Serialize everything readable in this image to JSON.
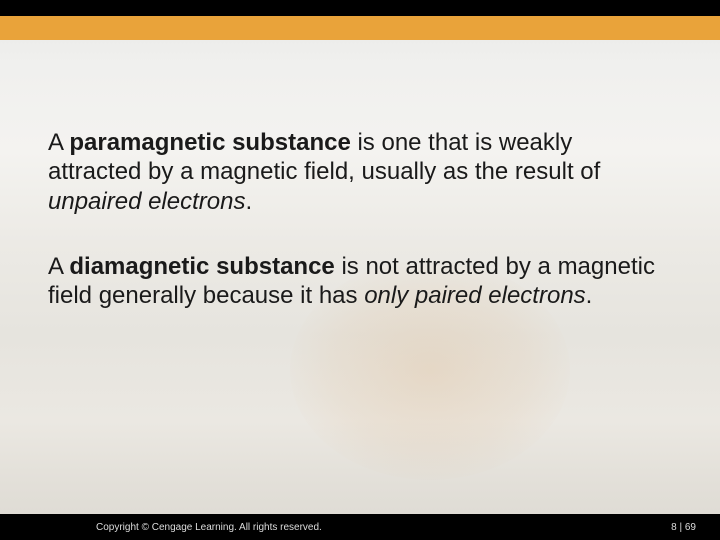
{
  "colors": {
    "top_black": "#000000",
    "top_orange": "#e9a33a",
    "text": "#1a1a1a",
    "footer_bg": "#000000",
    "footer_text": "#dddddd",
    "background_gradient": [
      "#e8e8e6",
      "#f0f0ee",
      "#f4f3f0",
      "#eceae5",
      "#e6e4de",
      "#ebe8e2",
      "#e2dfd8",
      "#dcd9d2"
    ]
  },
  "typography": {
    "body_font": "Arial",
    "body_size_pt": 18,
    "footer_size_pt": 7.5,
    "line_height": 1.22
  },
  "paragraphs": {
    "p1": {
      "pre": "A ",
      "bold": "paramagnetic substance",
      "mid": " is one that is weakly attracted by a magnetic field, usually as the result of ",
      "italic": "unpaired electrons",
      "post": "."
    },
    "p2": {
      "pre": "A ",
      "bold": "diamagnetic substance",
      "mid": " is not attracted by a magnetic field generally because it has ",
      "italic": "only paired electrons",
      "post": "."
    }
  },
  "footer": {
    "copyright": "Copyright © Cengage Learning. All rights reserved.",
    "page": "8 | 69"
  }
}
